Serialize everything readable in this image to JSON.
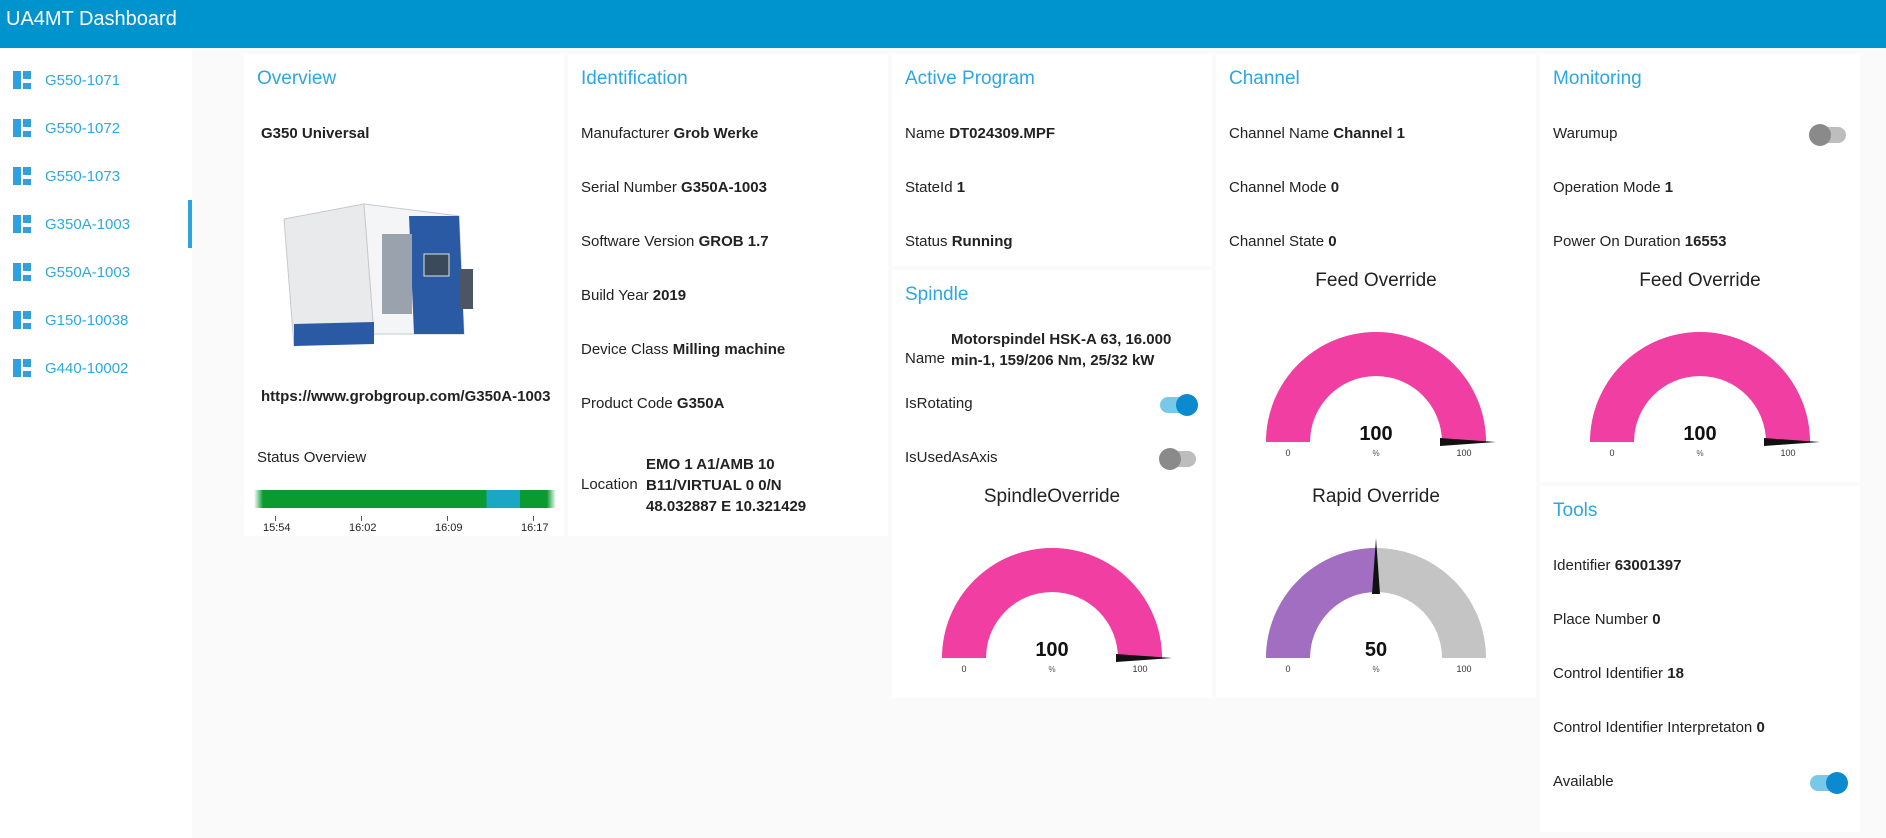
{
  "app": {
    "title": "UA4MT Dashboard"
  },
  "sidebar": {
    "items": [
      {
        "label": "G550-1071"
      },
      {
        "label": "G550-1072"
      },
      {
        "label": "G550-1073"
      },
      {
        "label": "G350A-1003",
        "active": true
      },
      {
        "label": "G550A-1003"
      },
      {
        "label": "G150-10038"
      },
      {
        "label": "G440-10002"
      }
    ]
  },
  "overview": {
    "title": "Overview",
    "model": "G350 Universal",
    "link": "https://www.grobgroup.com/G350A-1003",
    "status_label": "Status Overview",
    "timeline_ticks": [
      "15:54",
      "16:02",
      "16:09",
      "16:17"
    ],
    "timeline_colors": {
      "running": "#0a9a2f",
      "other": "#1aa7c3"
    }
  },
  "identification": {
    "title": "Identification",
    "rows": [
      {
        "label": "Manufacturer",
        "value": "Grob Werke"
      },
      {
        "label": "Serial Number",
        "value": "G350A-1003"
      },
      {
        "label": "Software Version",
        "value": "GROB 1.7"
      },
      {
        "label": "Build Year",
        "value": "2019"
      },
      {
        "label": "Device Class",
        "value": "Milling machine"
      },
      {
        "label": "Product Code",
        "value": "G350A"
      }
    ],
    "location": {
      "label": "Location",
      "lines": [
        "EMO 1 A1/AMB 10",
        "B11/VIRTUAL 0 0/N",
        "48.032887 E 10.321429"
      ]
    }
  },
  "active_program": {
    "title": "Active Program",
    "rows": [
      {
        "label": "Name",
        "value": "DT024309.MPF"
      },
      {
        "label": "StateId",
        "value": "1"
      },
      {
        "label": "Status",
        "value": "Running"
      }
    ]
  },
  "spindle": {
    "title": "Spindle",
    "name_label": "Name",
    "name_lines": [
      "Motorspindel HSK-A 63, 16.000",
      "min-1, 159/206 Nm, 25/32 kW"
    ],
    "is_rotating_label": "IsRotating",
    "is_rotating": true,
    "is_used_as_axis_label": "IsUsedAsAxis",
    "is_used_as_axis": false,
    "override_gauge": {
      "title": "SpindleOverride",
      "value": "100",
      "unit": "%",
      "min": "0",
      "max": "100",
      "fraction": 1.0,
      "color": "#f03ea3"
    }
  },
  "channel": {
    "title": "Channel",
    "rows": [
      {
        "label": "Channel Name",
        "value": "Channel 1"
      },
      {
        "label": "Channel Mode",
        "value": "0"
      },
      {
        "label": "Channel State",
        "value": "0"
      }
    ],
    "feed_gauge": {
      "title": "Feed Override",
      "value": "100",
      "unit": "%",
      "min": "0",
      "max": "100",
      "fraction": 1.0,
      "color": "#f03ea3"
    },
    "rapid_gauge": {
      "title": "Rapid Override",
      "value": "50",
      "unit": "%",
      "min": "0",
      "max": "100",
      "fraction": 0.5,
      "color": "#a16ec1"
    }
  },
  "monitoring": {
    "title": "Monitoring",
    "warmup_label": "Warumup",
    "warmup": false,
    "rows": [
      {
        "label": "Operation Mode",
        "value": "1"
      },
      {
        "label": "Power On Duration",
        "value": "16553"
      }
    ],
    "feed_gauge": {
      "title": "Feed Override",
      "value": "100",
      "unit": "%",
      "min": "0",
      "max": "100",
      "fraction": 1.0,
      "color": "#f03ea3"
    }
  },
  "tools": {
    "title": "Tools",
    "rows": [
      {
        "label": "Identifier",
        "value": "63001397"
      },
      {
        "label": "Place Number",
        "value": "0"
      },
      {
        "label": "Control Identifier",
        "value": "18"
      },
      {
        "label": "Control Identifier Interpretaton",
        "value": "0"
      }
    ],
    "available_label": "Available",
    "available": true
  }
}
